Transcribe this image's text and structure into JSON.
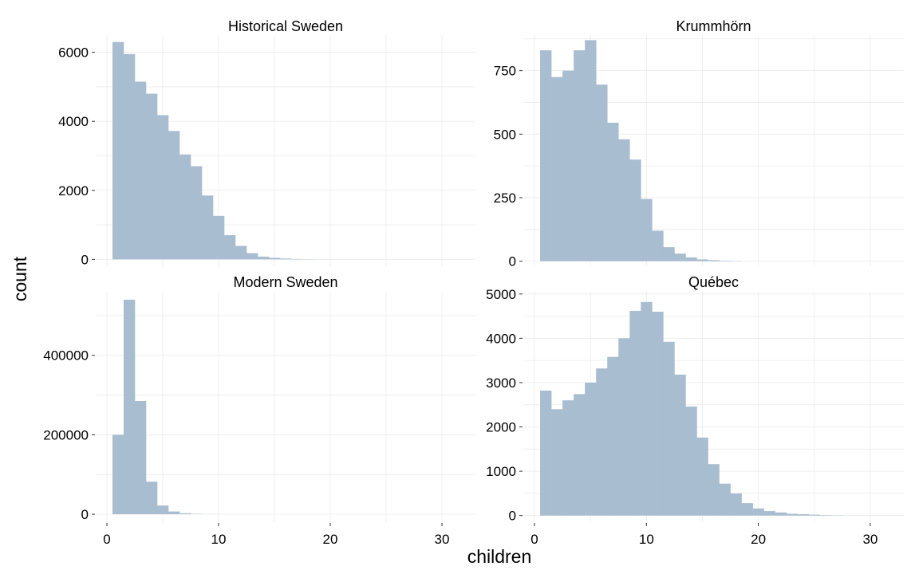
{
  "chart_data": {
    "type": "bar",
    "xlabel": "children",
    "ylabel": "count",
    "bar_color": "#a8bdd0",
    "grid": true,
    "bin_width": 1.0,
    "xlim": [
      -1,
      33
    ],
    "x_ticks": [
      0,
      10,
      20,
      30
    ],
    "panels": [
      {
        "title": "Historical Sweden",
        "bins_start": 1,
        "values": [
          6300,
          5950,
          5150,
          4800,
          4180,
          3720,
          3040,
          2700,
          1850,
          1260,
          700,
          390,
          180,
          80,
          45,
          25,
          12,
          6,
          3,
          1
        ],
        "ylim": [
          -200,
          6500
        ],
        "y_ticks": [
          0,
          2000,
          4000,
          6000
        ],
        "y_tick_labels": [
          "0",
          "2000",
          "4000",
          "6000"
        ]
      },
      {
        "title": "Krummhörn",
        "bins_start": 1,
        "values": [
          830,
          725,
          750,
          830,
          870,
          695,
          545,
          480,
          400,
          245,
          120,
          55,
          30,
          15,
          7,
          4,
          2,
          1
        ],
        "ylim": [
          -20,
          890
        ],
        "y_ticks": [
          0,
          250,
          500,
          750
        ],
        "y_tick_labels": [
          "0",
          "250",
          "500",
          "750"
        ]
      },
      {
        "title": "Modern Sweden",
        "bins_start": 1,
        "values": [
          200000,
          540000,
          285000,
          82000,
          22000,
          7000,
          2500,
          900,
          300,
          100
        ],
        "ylim": [
          -20000,
          560000
        ],
        "y_ticks": [
          0,
          200000,
          400000
        ],
        "y_tick_labels": [
          "0",
          "200000",
          "400000"
        ]
      },
      {
        "title": "Québec",
        "bins_start": 1,
        "values": [
          2820,
          2400,
          2600,
          2740,
          3000,
          3320,
          3580,
          4000,
          4620,
          4820,
          4600,
          3920,
          3180,
          2460,
          1760,
          1160,
          720,
          500,
          280,
          160,
          100,
          70,
          40,
          30,
          20,
          10,
          5
        ],
        "ylim": [
          -150,
          5050
        ],
        "y_ticks": [
          0,
          1000,
          2000,
          3000,
          4000,
          5000
        ],
        "y_tick_labels": [
          "0",
          "1000",
          "2000",
          "3000",
          "4000",
          "5000"
        ]
      }
    ]
  }
}
